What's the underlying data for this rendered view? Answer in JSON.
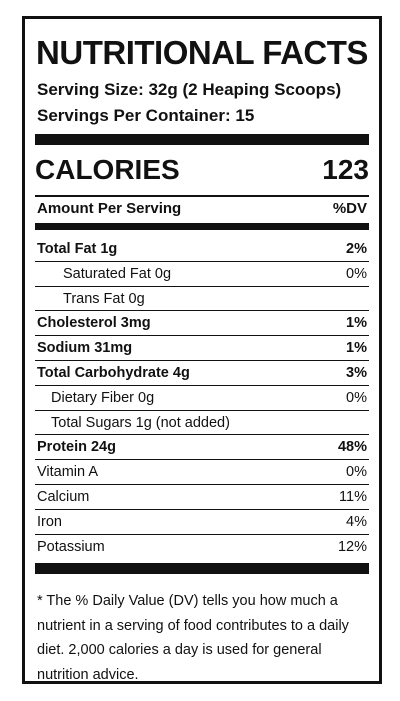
{
  "label": {
    "title": "NUTRITIONAL FACTS",
    "serving_size": "Serving Size: 32g (2 Heaping Scoops)",
    "servings_per_container": "Servings Per Container: 15",
    "calories_label": "CALORIES",
    "calories_value": "123",
    "amount_per_serving": "Amount Per Serving",
    "dv_header": "%DV",
    "nutrients": [
      {
        "name": "Total Fat 1g",
        "dv": "2%",
        "bold": true,
        "indent": 0
      },
      {
        "name": "Saturated Fat  0g",
        "dv": "0%",
        "bold": false,
        "indent": 2
      },
      {
        "name": "Trans Fat  0g",
        "dv": "",
        "bold": false,
        "indent": 2
      },
      {
        "name": "Cholesterol  3mg",
        "dv": "1%",
        "bold": true,
        "indent": 0
      },
      {
        "name": "Sodium  31mg",
        "dv": "1%",
        "bold": true,
        "indent": 0
      },
      {
        "name": "Total Carbohydrate  4g",
        "dv": "3%",
        "bold": true,
        "indent": 0
      },
      {
        "name": "Dietary Fiber  0g",
        "dv": "0%",
        "bold": false,
        "indent": 1
      },
      {
        "name": "Total Sugars  1g (not added)",
        "dv": "",
        "bold": false,
        "indent": 1
      },
      {
        "name": "Protein  24g",
        "dv": "48%",
        "bold": true,
        "indent": 0
      },
      {
        "name": "Vitamin A",
        "dv": "0%",
        "bold": false,
        "indent": 0
      },
      {
        "name": "Calcium",
        "dv": "11%",
        "bold": false,
        "indent": 0
      },
      {
        "name": "Iron",
        "dv": "4%",
        "bold": false,
        "indent": 0
      },
      {
        "name": "Potassium",
        "dv": "12%",
        "bold": false,
        "indent": 0
      }
    ],
    "footnote": "* The % Daily Value (DV) tells you how much a nutrient in a serving of food contributes to a daily diet. 2,000 calories a day is used for general nutrition advice."
  }
}
